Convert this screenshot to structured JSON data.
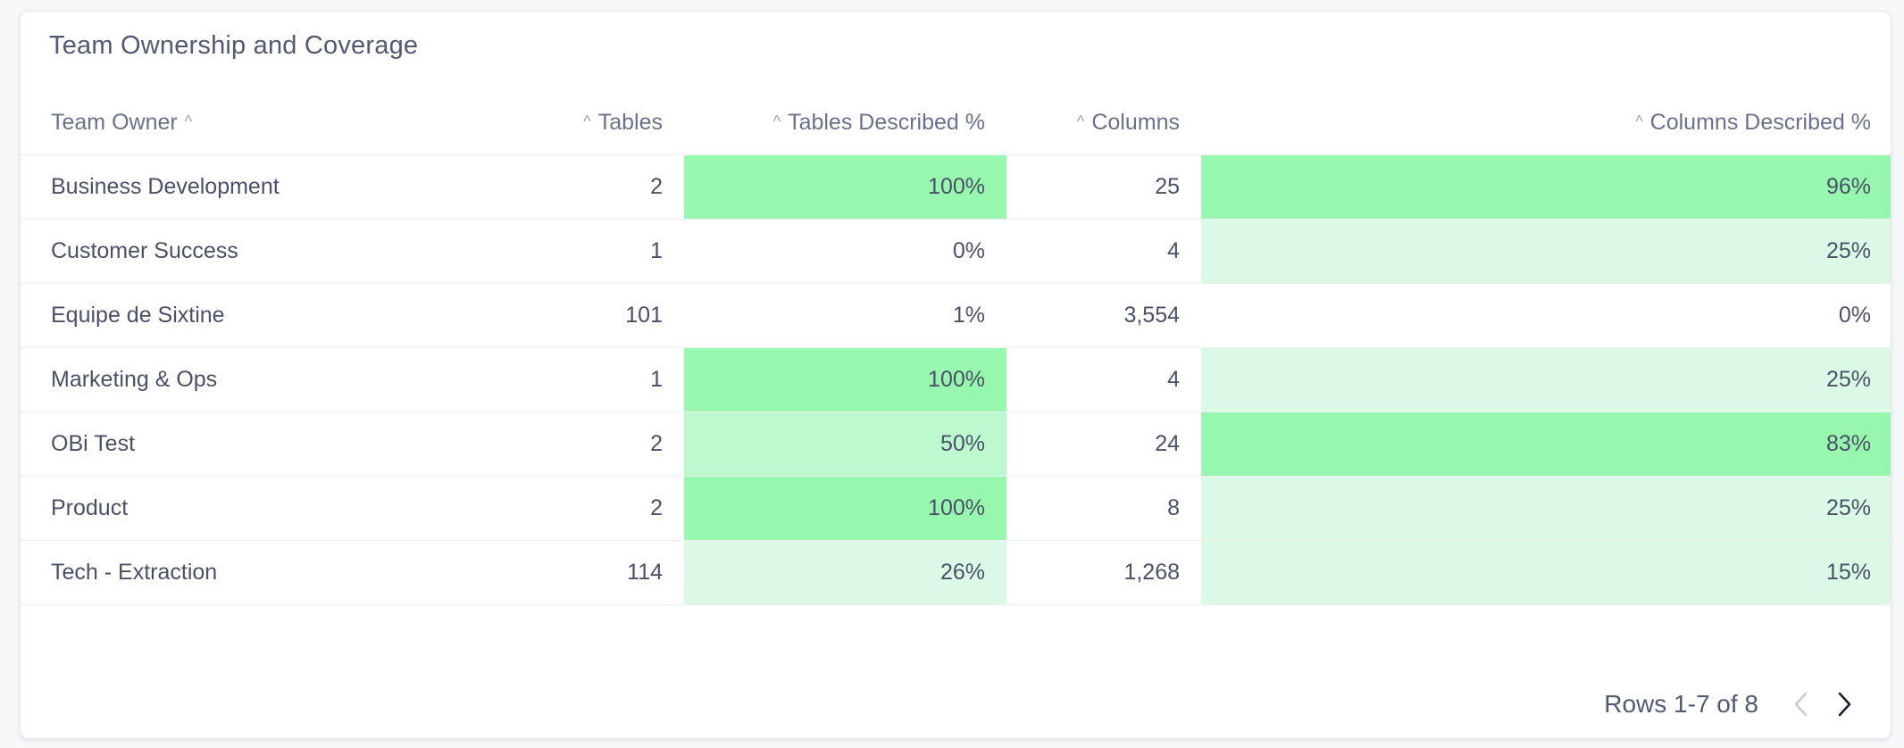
{
  "card": {
    "title": "Team Ownership and Coverage"
  },
  "table": {
    "columns": [
      {
        "label": "Team Owner",
        "sortable": true
      },
      {
        "label": "Tables",
        "sortable": true
      },
      {
        "label": "Tables Described %",
        "sortable": true
      },
      {
        "label": "Columns",
        "sortable": true
      },
      {
        "label": "Columns Described %",
        "sortable": true
      }
    ],
    "rows": [
      {
        "team": "Business Development",
        "tables": "2",
        "tables_pct": "100%",
        "tables_pct_val": 100,
        "columns": "25",
        "columns_pct": "96%",
        "columns_pct_val": 96
      },
      {
        "team": "Customer Success",
        "tables": "1",
        "tables_pct": "0%",
        "tables_pct_val": 0,
        "columns": "4",
        "columns_pct": "25%",
        "columns_pct_val": 25
      },
      {
        "team": "Equipe de Sixtine",
        "tables": "101",
        "tables_pct": "1%",
        "tables_pct_val": 1,
        "columns": "3,554",
        "columns_pct": "0%",
        "columns_pct_val": 0
      },
      {
        "team": "Marketing & Ops",
        "tables": "1",
        "tables_pct": "100%",
        "tables_pct_val": 100,
        "columns": "4",
        "columns_pct": "25%",
        "columns_pct_val": 25
      },
      {
        "team": "OBi Test",
        "tables": "2",
        "tables_pct": "50%",
        "tables_pct_val": 50,
        "columns": "24",
        "columns_pct": "83%",
        "columns_pct_val": 83
      },
      {
        "team": "Product",
        "tables": "2",
        "tables_pct": "100%",
        "tables_pct_val": 100,
        "columns": "8",
        "columns_pct": "25%",
        "columns_pct_val": 25
      },
      {
        "team": "Tech - Extraction",
        "tables": "114",
        "tables_pct": "26%",
        "tables_pct_val": 26,
        "columns": "1,268",
        "columns_pct": "15%",
        "columns_pct_val": 15
      }
    ]
  },
  "heat_colors": {
    "high": "#98f7ae",
    "mid": "#bcf9cf",
    "low": "#dbfae6",
    "none": "#ffffff"
  },
  "pagination": {
    "label": "Rows 1-7 of 8",
    "prev_icon": "chevron-left-icon",
    "next_icon": "chevron-right-icon"
  }
}
